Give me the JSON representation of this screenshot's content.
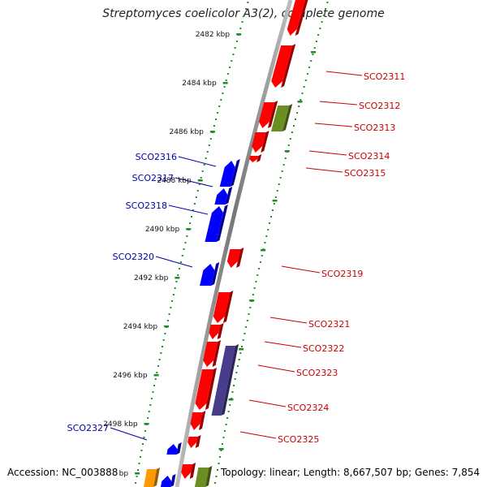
{
  "header": {
    "title": "Streptomyces coelicolor A3(2), complete genome"
  },
  "footer": {
    "accession": "Accession: NC_003888",
    "summary": "Topology: linear; Length: 8,667,507 bp; Genes: 7,854"
  },
  "scale": {
    "ticks": [
      "2482 kbp",
      "2484 kbp",
      "2486 kbp",
      "2488 kbp",
      "2490 kbp",
      "2492 kbp",
      "2494 kbp",
      "2496 kbp",
      "2498 kbp"
    ],
    "partial_tick": "kbp"
  },
  "genes": {
    "forward": [
      "SCO2311",
      "SCO2312",
      "SCO2313",
      "SCO2314",
      "SCO2315",
      "SCO2319",
      "SCO2321",
      "SCO2322",
      "SCO2323",
      "SCO2324",
      "SCO2325"
    ],
    "reverse": [
      "SCO2316",
      "SCO2317",
      "SCO2318",
      "SCO2320",
      "SCO2327"
    ]
  },
  "colors": {
    "forward_gene": "#ff0000",
    "reverse_gene": "#0000ff",
    "forward_label": "#cc0000",
    "reverse_label": "#0000aa",
    "rna_feature": "#6b8e23",
    "pseudo_feature": "#483d8b",
    "other_feature": "#ff9900",
    "backbone": "#8c8c8c",
    "ruler": "#228b22"
  }
}
